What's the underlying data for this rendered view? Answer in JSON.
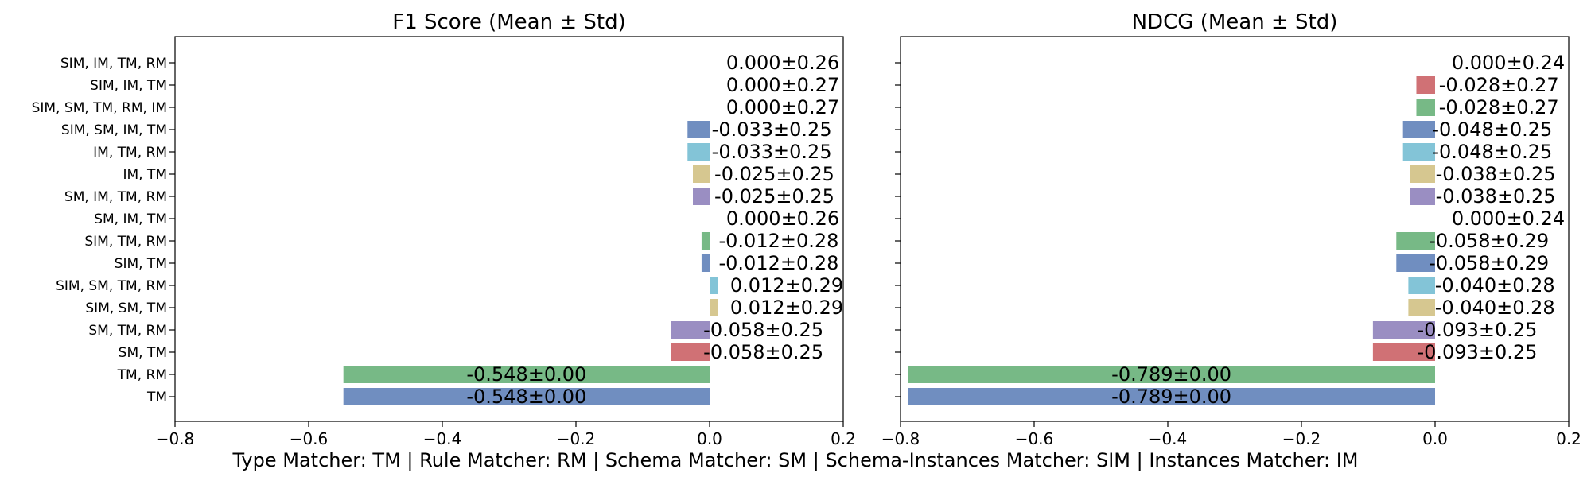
{
  "footer": "Type Matcher: TM | Rule Matcher: RM | Schema Matcher: SM | Schema-Instances Matcher: SIM | Instances Matcher: IM",
  "chart_data": [
    {
      "type": "bar",
      "orientation": "horizontal",
      "title": "F1 Score (Mean ± Std)",
      "xlim": [
        -0.8,
        0.2
      ],
      "xticks": [
        "−0.8",
        "−0.6",
        "−0.4",
        "−0.2",
        "0.0",
        "0.2"
      ],
      "xtick_values": [
        -0.8,
        -0.6,
        -0.4,
        -0.2,
        0.0,
        0.2
      ],
      "categories": [
        "SIM, IM, TM, RM",
        "SIM, IM, TM",
        "SIM, SM, TM, RM, IM",
        "SIM, SM, IM, TM",
        "IM, TM, RM",
        "IM, TM",
        "SM, IM, TM, RM",
        "SM, IM, TM",
        "SIM, TM, RM",
        "SIM, TM",
        "SIM, SM, TM, RM",
        "SIM, SM, TM",
        "SM, TM, RM",
        "SM, TM",
        "TM, RM",
        "TM"
      ],
      "values": [
        0.0,
        0.0,
        0.0,
        -0.033,
        -0.033,
        -0.025,
        -0.025,
        0.0,
        -0.012,
        -0.012,
        0.012,
        0.012,
        -0.058,
        -0.058,
        -0.548,
        -0.548
      ],
      "labels": [
        "0.000±0.26",
        "0.000±0.27",
        "0.000±0.27",
        "-0.033±0.25",
        "-0.033±0.25",
        "-0.025±0.25",
        "-0.025±0.25",
        "0.000±0.26",
        "-0.012±0.28",
        "-0.012±0.28",
        "0.012±0.29",
        "0.012±0.29",
        "-0.058±0.25",
        "-0.058±0.25",
        "-0.548±0.00",
        "-0.548±0.00"
      ],
      "colors": [
        "#4c72b0",
        "#c44e52",
        "#55a868",
        "#4c72b0",
        "#64b5cd",
        "#ccb974",
        "#8172b3",
        "#4c72b0",
        "#55a868",
        "#4c72b0",
        "#64b5cd",
        "#ccb974",
        "#8172b3",
        "#c44e52",
        "#55a868",
        "#4c72b0"
      ]
    },
    {
      "type": "bar",
      "orientation": "horizontal",
      "title": "NDCG (Mean ± Std)",
      "xlim": [
        -0.8,
        0.2
      ],
      "xticks": [
        "−0.8",
        "−0.6",
        "−0.4",
        "−0.2",
        "0.0",
        "0.2"
      ],
      "xtick_values": [
        -0.8,
        -0.6,
        -0.4,
        -0.2,
        0.0,
        0.2
      ],
      "categories": [
        "SIM, IM, TM, RM",
        "SIM, IM, TM",
        "SIM, SM, TM, RM, IM",
        "SIM, SM, IM, TM",
        "IM, TM, RM",
        "IM, TM",
        "SM, IM, TM, RM",
        "SM, IM, TM",
        "SIM, TM, RM",
        "SIM, TM",
        "SIM, SM, TM, RM",
        "SIM, SM, TM",
        "SM, TM, RM",
        "SM, TM",
        "TM, RM",
        "TM"
      ],
      "values": [
        0.0,
        -0.028,
        -0.028,
        -0.048,
        -0.048,
        -0.038,
        -0.038,
        0.0,
        -0.058,
        -0.058,
        -0.04,
        -0.04,
        -0.093,
        -0.093,
        -0.789,
        -0.789
      ],
      "labels": [
        "0.000±0.24",
        "-0.028±0.27",
        "-0.028±0.27",
        "-0.048±0.25",
        "-0.048±0.25",
        "-0.038±0.25",
        "-0.038±0.25",
        "0.000±0.24",
        "-0.058±0.29",
        "-0.058±0.29",
        "-0.040±0.28",
        "-0.040±0.28",
        "-0.093±0.25",
        "-0.093±0.25",
        "-0.789±0.00",
        "-0.789±0.00"
      ],
      "colors": [
        "#4c72b0",
        "#c44e52",
        "#55a868",
        "#4c72b0",
        "#64b5cd",
        "#ccb974",
        "#8172b3",
        "#4c72b0",
        "#55a868",
        "#4c72b0",
        "#64b5cd",
        "#ccb974",
        "#8172b3",
        "#c44e52",
        "#55a868",
        "#4c72b0"
      ]
    }
  ]
}
